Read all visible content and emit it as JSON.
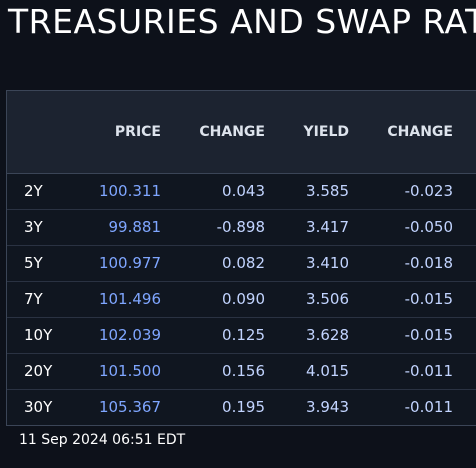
{
  "title": "TREASURIES AND SWAP RAT",
  "table": {
    "headers": [
      "",
      "PRICE",
      "CHANGE",
      "YIELD",
      "CHANGE"
    ],
    "rows": [
      {
        "term": "2Y",
        "price": "100.311",
        "price_change": "0.043",
        "yield": "3.585",
        "yield_change": "-0.023"
      },
      {
        "term": "3Y",
        "price": "99.881",
        "price_change": "-0.898",
        "yield": "3.417",
        "yield_change": "-0.050"
      },
      {
        "term": "5Y",
        "price": "100.977",
        "price_change": "0.082",
        "yield": "3.410",
        "yield_change": "-0.018"
      },
      {
        "term": "7Y",
        "price": "101.496",
        "price_change": "0.090",
        "yield": "3.506",
        "yield_change": "-0.015"
      },
      {
        "term": "10Y",
        "price": "102.039",
        "price_change": "0.125",
        "yield": "3.628",
        "yield_change": "-0.015"
      },
      {
        "term": "20Y",
        "price": "101.500",
        "price_change": "0.156",
        "yield": "4.015",
        "yield_change": "-0.011"
      },
      {
        "term": "30Y",
        "price": "105.367",
        "price_change": "0.195",
        "yield": "3.943",
        "yield_change": "-0.011"
      }
    ]
  },
  "timestamp": "11 Sep 2024 06:51 EDT",
  "colors": {
    "background": "#0d111a",
    "header_bg": "#1c2330",
    "price": "#7fa6ff",
    "value": "#c2d4ff"
  }
}
